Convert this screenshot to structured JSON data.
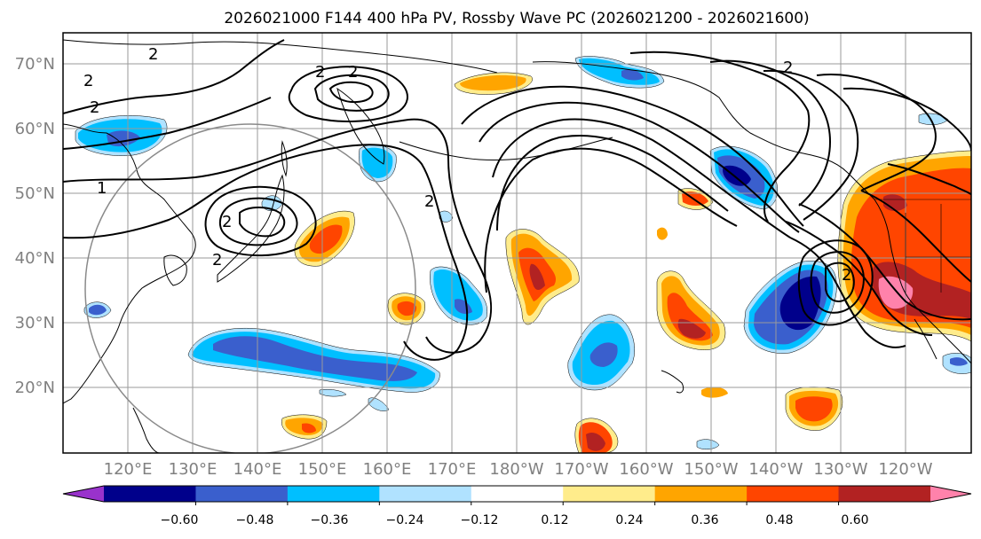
{
  "title": "2026021000 F144 400 hPa PV, Rossby Wave PC (2026021200 - 2026021600)",
  "colors": {
    "frame": "#000000",
    "grid": "#9a9a9a",
    "axis_label": "#808080",
    "contour": "#000000",
    "coast": "#000000",
    "circle": "#8a8a8a"
  },
  "lat_labels": [
    "70°N",
    "60°N",
    "50°N",
    "40°N",
    "30°N",
    "20°N"
  ],
  "lon_labels": [
    "120°E",
    "130°E",
    "140°E",
    "150°E",
    "160°E",
    "170°E",
    "180°W",
    "170°W",
    "160°W",
    "150°W",
    "140°W",
    "130°W",
    "120°W"
  ],
  "contour_labels": [
    "2",
    "2",
    "2",
    "2",
    "2",
    "2",
    "2",
    "1",
    "2",
    "2",
    "2"
  ],
  "colorbar": {
    "colors": [
      "#9932cc",
      "#00008b",
      "#3a5fcd",
      "#00bfff",
      "#b0e2ff",
      "#ffffff",
      "#ffec8b",
      "#ffa500",
      "#ff4500",
      "#b22222",
      "#ff82ab"
    ],
    "tick_labels": [
      "−0.60",
      "−0.48",
      "−0.36",
      "−0.24",
      "−0.12",
      "0.12",
      "0.24",
      "0.36",
      "0.48",
      "0.60"
    ]
  },
  "anomaly_colors": {
    "pos1": "#ffec8b",
    "pos2": "#ffa500",
    "pos3": "#ff4500",
    "pos4": "#b22222",
    "pos5": "#ff82ab",
    "neg1": "#b0e2ff",
    "neg2": "#00bfff",
    "neg3": "#3a5fcd",
    "neg4": "#00008b"
  }
}
